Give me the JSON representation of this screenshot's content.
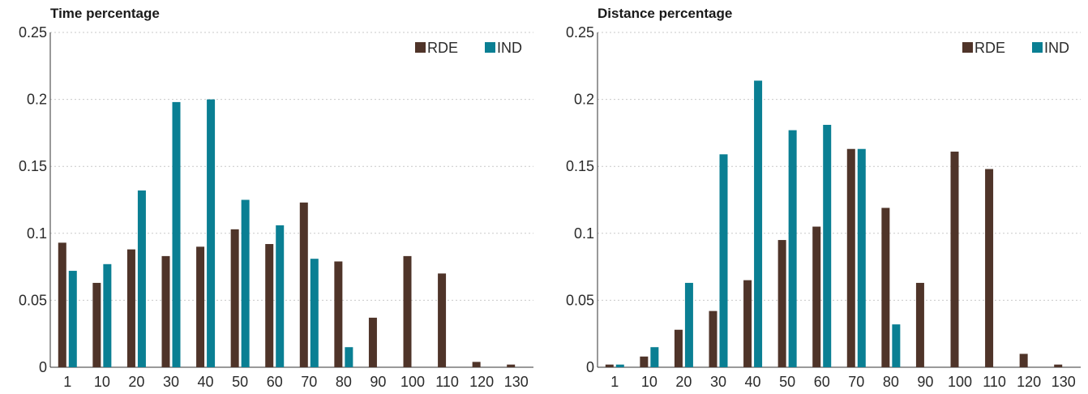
{
  "colors": {
    "RDE": "#4f3429",
    "IND": "#0a7f93",
    "axis": "#333333",
    "grid": "#c9c9c9"
  },
  "chart_data": [
    {
      "type": "bar",
      "title": "Time percentage",
      "xlabel": "",
      "ylabel": "",
      "categories": [
        "1",
        "10",
        "20",
        "30",
        "40",
        "50",
        "60",
        "70",
        "80",
        "90",
        "100",
        "110",
        "120",
        "130"
      ],
      "series": [
        {
          "name": "RDE",
          "values": [
            0.093,
            0.063,
            0.088,
            0.083,
            0.09,
            0.103,
            0.092,
            0.123,
            0.079,
            0.037,
            0.083,
            0.07,
            0.004,
            0.002
          ]
        },
        {
          "name": "IND",
          "values": [
            0.072,
            0.077,
            0.132,
            0.198,
            0.2,
            0.125,
            0.106,
            0.081,
            0.015,
            0,
            0,
            0,
            0,
            0
          ]
        }
      ],
      "ylim": [
        0,
        0.25
      ],
      "yticks": [
        "0",
        "0.05",
        "0.1",
        "0.15",
        "0.2",
        "0.25"
      ],
      "grid": true,
      "legend": "top-right"
    },
    {
      "type": "bar",
      "title": "Distance percentage",
      "xlabel": "",
      "ylabel": "",
      "categories": [
        "1",
        "10",
        "20",
        "30",
        "40",
        "50",
        "60",
        "70",
        "80",
        "90",
        "100",
        "110",
        "120",
        "130"
      ],
      "series": [
        {
          "name": "RDE",
          "values": [
            0.002,
            0.008,
            0.028,
            0.042,
            0.065,
            0.095,
            0.105,
            0.163,
            0.119,
            0.063,
            0.161,
            0.148,
            0.01,
            0.002
          ]
        },
        {
          "name": "IND",
          "values": [
            0.002,
            0.015,
            0.063,
            0.159,
            0.214,
            0.177,
            0.181,
            0.163,
            0.032,
            0,
            0,
            0,
            0,
            0
          ]
        }
      ],
      "ylim": [
        0,
        0.25
      ],
      "yticks": [
        "0",
        "0.05",
        "0.1",
        "0.15",
        "0.2",
        "0.25"
      ],
      "grid": true,
      "legend": "top-right"
    }
  ]
}
